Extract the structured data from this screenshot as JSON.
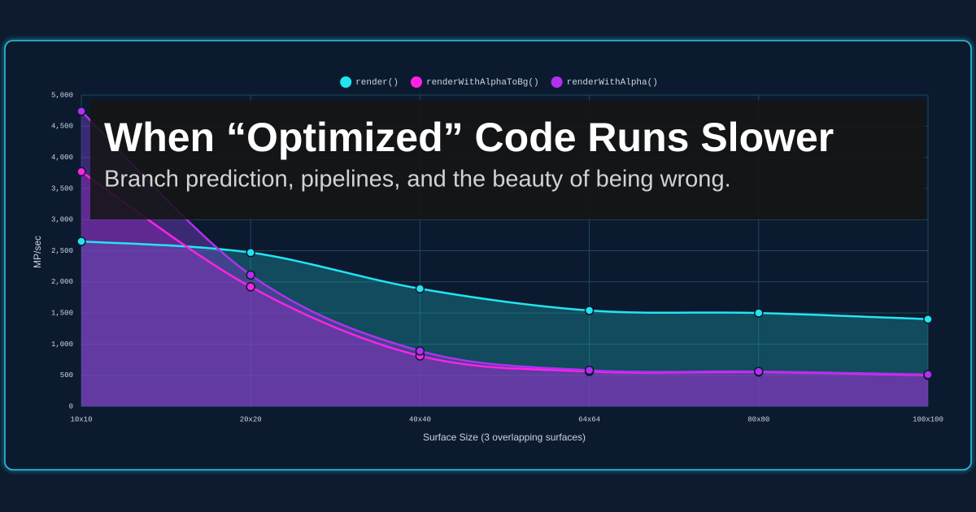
{
  "chart_data": {
    "type": "line",
    "title": "When “Optimized” Code Runs Slower",
    "subtitle": "Branch prediction, pipelines, and the beauty of being wrong.",
    "x_label": "Surface Size (3 overlapping surfaces)",
    "y_label": "MP/sec",
    "categories": [
      "10x10",
      "20x20",
      "40x40",
      "64x64",
      "80x80",
      "100x100"
    ],
    "series": [
      {
        "name": "render()",
        "color": "#22e5f0",
        "values": [
          2650,
          2470,
          1890,
          1540,
          1500,
          1400
        ]
      },
      {
        "name": "renderWithAlphaToBg()",
        "color": "#ff22e6",
        "values": [
          3770,
          1920,
          810,
          560,
          550,
          500
        ]
      },
      {
        "name": "renderWithAlpha()",
        "color": "#b030f0",
        "values": [
          4740,
          2110,
          890,
          580,
          560,
          510
        ]
      }
    ],
    "ylim": [
      0,
      5000
    ],
    "yticks": [
      0,
      500,
      {
        "value": 1000,
        "label": "1,000"
      },
      {
        "value": 1500,
        "label": "1,500"
      },
      {
        "value": 2000,
        "label": "2,000"
      },
      {
        "value": 2500,
        "label": "2,500"
      },
      {
        "value": 3000,
        "label": "3,000"
      },
      {
        "value": 3500,
        "label": "3,500"
      },
      {
        "value": 4000,
        "label": "4,000"
      },
      {
        "value": 4500,
        "label": "4,500"
      },
      {
        "value": 5000,
        "label": "5,000"
      }
    ],
    "grid": true,
    "legend": "top"
  }
}
